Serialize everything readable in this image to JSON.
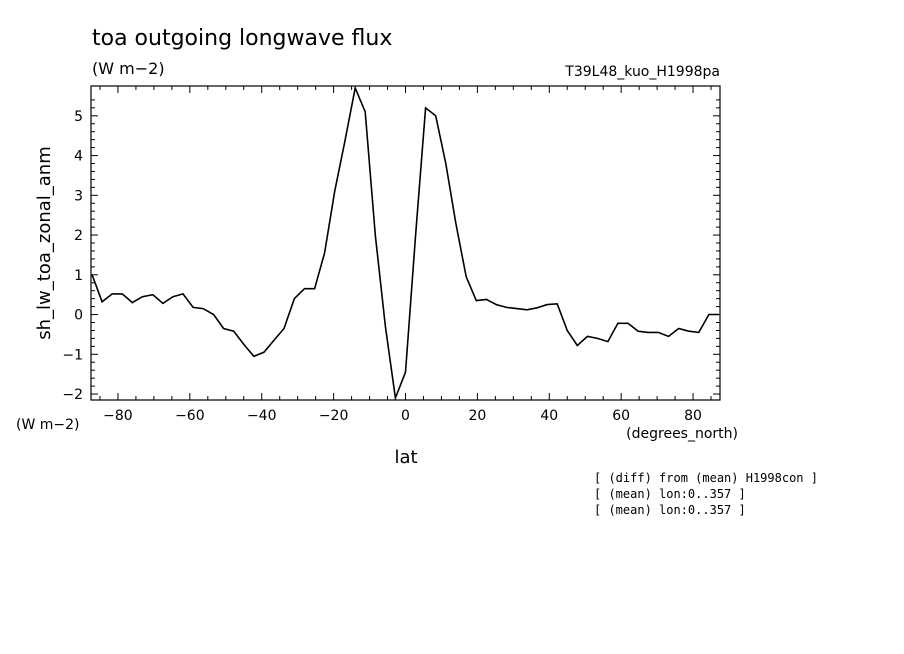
{
  "title": "toa outgoing longwave flux",
  "units": "(W m−2)",
  "run_label": "T39L48_kuo_H1998pa",
  "y_units_bottom": "(W m−2)",
  "x_units": "(degrees_north)",
  "notes": [
    "[ (diff) from (mean) H1998con ]",
    "[ (mean) lon:0..357 ]",
    "[ (mean) lon:0..357 ]"
  ],
  "chart_data": {
    "type": "line",
    "xlabel": "lat",
    "ylabel": "sh_lw_toa_zonal_anm",
    "xlim": [
      -87.5,
      87.5
    ],
    "ylim": [
      -2.15,
      5.75
    ],
    "xticks": [
      -80,
      -60,
      -40,
      -20,
      0,
      20,
      40,
      60,
      80
    ],
    "yticks": [
      -2,
      -1,
      0,
      1,
      2,
      3,
      4,
      5
    ],
    "grid": false,
    "series": [
      {
        "x": [
          -87.2,
          -84.4,
          -81.6,
          -78.8,
          -76.0,
          -73.2,
          -70.3,
          -67.5,
          -64.7,
          -61.9,
          -59.1,
          -56.3,
          -53.4,
          -50.6,
          -47.8,
          -45.0,
          -42.2,
          -39.4,
          -36.6,
          -33.8,
          -30.9,
          -28.1,
          -25.3,
          -22.5,
          -19.7,
          -16.9,
          -14.0,
          -11.2,
          -8.4,
          -5.6,
          -2.8,
          0.0,
          2.8,
          5.6,
          8.4,
          11.2,
          14.0,
          16.9,
          19.7,
          22.5,
          25.3,
          28.1,
          30.9,
          33.8,
          36.6,
          39.4,
          42.2,
          45.0,
          47.8,
          50.6,
          53.4,
          56.3,
          59.1,
          61.9,
          64.7,
          67.5,
          70.3,
          73.2,
          76.0,
          78.8,
          81.6,
          84.4,
          87.2
        ],
        "y": [
          1.0,
          0.32,
          0.52,
          0.52,
          0.3,
          0.45,
          0.5,
          0.28,
          0.45,
          0.52,
          0.18,
          0.15,
          0.0,
          -0.35,
          -0.42,
          -0.75,
          -1.05,
          -0.95,
          -0.65,
          -0.35,
          0.4,
          0.65,
          0.65,
          1.55,
          3.1,
          4.35,
          5.7,
          5.1,
          2.0,
          -0.3,
          -2.1,
          -1.45,
          2.0,
          5.2,
          5.0,
          3.8,
          2.3,
          0.95,
          0.35,
          0.38,
          0.25,
          0.18,
          0.15,
          0.12,
          0.17,
          0.25,
          0.27,
          -0.4,
          -0.78,
          -0.55,
          -0.6,
          -0.68,
          -0.22,
          -0.22,
          -0.42,
          -0.45,
          -0.45,
          -0.55,
          -0.35,
          -0.42,
          -0.45,
          0.0,
          0.0
        ]
      }
    ]
  }
}
